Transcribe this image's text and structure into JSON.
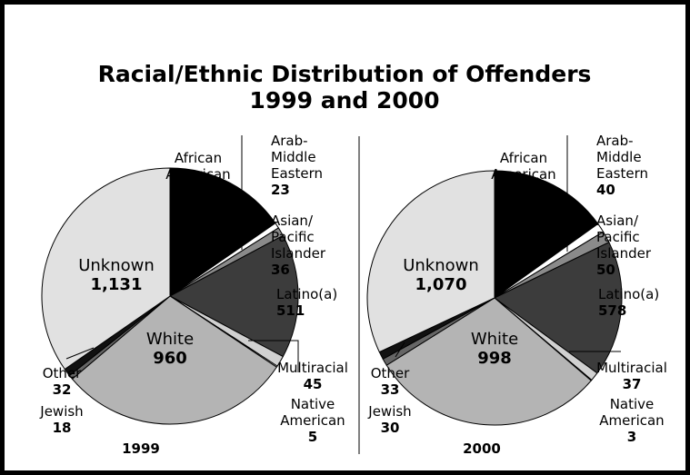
{
  "chart_data": {
    "type": "pie",
    "title_line1": "Racial/Ethnic Distribution of Offenders",
    "title_line2": "1999 and 2000",
    "colors": {
      "African American": "#000000",
      "Arab-Middle Eastern": "#ffffff",
      "Asian/Pacific Islander": "#8a8a8a",
      "Latino(a)": "#3c3c3c",
      "Multiracial": "#d0d0d0",
      "Native American": "#ffffff",
      "White": "#b4b4b4",
      "Jewish": "#666666",
      "Other": "#111111",
      "Unknown": "#e1e1e1"
    },
    "charts": [
      {
        "year": "1999",
        "slices": [
          {
            "category": "African American",
            "label_lines": [
              "African",
              "American"
            ],
            "value": 501,
            "value_label": "501"
          },
          {
            "category": "Arab-Middle Eastern",
            "label_lines": [
              "Arab-",
              "Middle",
              "Eastern"
            ],
            "value": 23,
            "value_label": "23"
          },
          {
            "category": "Asian/Pacific Islander",
            "label_lines": [
              "Asian/",
              "Pacific",
              "Islander"
            ],
            "value": 36,
            "value_label": "36"
          },
          {
            "category": "Latino(a)",
            "label_lines": [
              "Latino(a)"
            ],
            "value": 511,
            "value_label": "511"
          },
          {
            "category": "Multiracial",
            "label_lines": [
              "Multiracial"
            ],
            "value": 45,
            "value_label": "45"
          },
          {
            "category": "Native American",
            "label_lines": [
              "Native",
              "American"
            ],
            "value": 5,
            "value_label": "5"
          },
          {
            "category": "White",
            "label_lines": [
              "White"
            ],
            "value": 960,
            "value_label": "960"
          },
          {
            "category": "Jewish",
            "label_lines": [
              "Jewish"
            ],
            "value": 18,
            "value_label": "18"
          },
          {
            "category": "Other",
            "label_lines": [
              "Other"
            ],
            "value": 32,
            "value_label": "32"
          },
          {
            "category": "Unknown",
            "label_lines": [
              "Unknown"
            ],
            "value": 1131,
            "value_label": "1,131"
          }
        ]
      },
      {
        "year": "2000",
        "slices": [
          {
            "category": "African American",
            "label_lines": [
              "African",
              "American"
            ],
            "value": 505,
            "value_label": "505"
          },
          {
            "category": "Arab-Middle Eastern",
            "label_lines": [
              "Arab-",
              "Middle",
              "Eastern"
            ],
            "value": 40,
            "value_label": "40"
          },
          {
            "category": "Asian/Pacific Islander",
            "label_lines": [
              "Asian/",
              "Pacific",
              "Islander"
            ],
            "value": 50,
            "value_label": "50"
          },
          {
            "category": "Latino(a)",
            "label_lines": [
              "Latino(a)"
            ],
            "value": 578,
            "value_label": "578"
          },
          {
            "category": "Multiracial",
            "label_lines": [
              "Multiracial"
            ],
            "value": 37,
            "value_label": "37"
          },
          {
            "category": "Native American",
            "label_lines": [
              "Native",
              "American"
            ],
            "value": 3,
            "value_label": "3"
          },
          {
            "category": "White",
            "label_lines": [
              "White"
            ],
            "value": 998,
            "value_label": "998"
          },
          {
            "category": "Jewish",
            "label_lines": [
              "Jewish"
            ],
            "value": 30,
            "value_label": "30"
          },
          {
            "category": "Other",
            "label_lines": [
              "Other"
            ],
            "value": 33,
            "value_label": "33"
          },
          {
            "category": "Unknown",
            "label_lines": [
              "Unknown"
            ],
            "value": 1070,
            "value_label": "1,070"
          }
        ]
      }
    ]
  }
}
